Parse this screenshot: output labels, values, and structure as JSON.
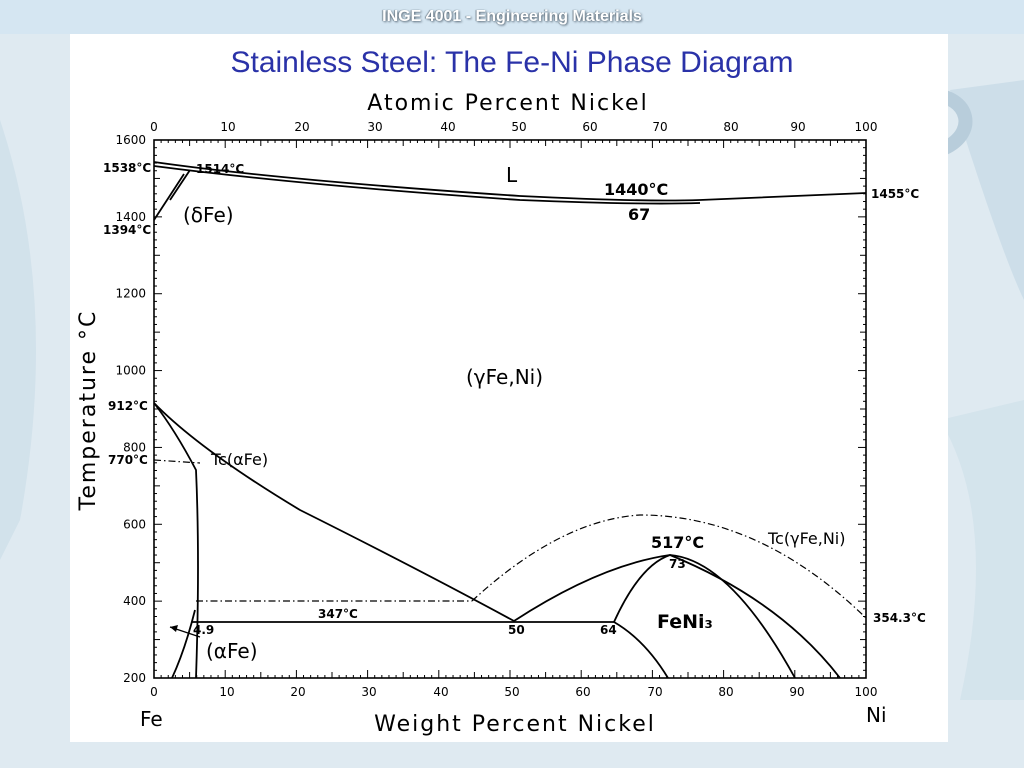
{
  "header": {
    "title": "INGE 4001 - Engineering Materials"
  },
  "slide": {
    "title": "Stainless Steel: The Fe-Ni Phase Diagram"
  },
  "diagram": {
    "top_axis_title": "Atomic Percent Nickel",
    "bottom_axis_title": "Weight Percent Nickel",
    "y_axis_title": "Temperature °C",
    "left_end_label": "Fe",
    "right_end_label": "Ni",
    "x_ticks": [
      "0",
      "10",
      "20",
      "30",
      "40",
      "50",
      "60",
      "70",
      "80",
      "90",
      "100"
    ],
    "y_ticks": [
      "1600",
      "1400",
      "1200",
      "1000",
      "800",
      "600",
      "400",
      "200"
    ],
    "labels": {
      "t1538": "1538°C",
      "t1514": "1514°C",
      "t1394": "1394°C",
      "t1455": "1455°C",
      "t1440": "1440°C",
      "c67": "67",
      "liquid": "L",
      "delta_fe": "(δFe)",
      "gamma_fe_ni": "(γFe,Ni)",
      "t912": "912°C",
      "t770": "770°C",
      "tc_alpha": "Tc(αFe)",
      "tc_gamma": "Tc(γFe,Ni)",
      "t517": "517°C",
      "c73": "73",
      "t347": "347°C",
      "c4_9": "4.9",
      "c50": "50",
      "c64": "64",
      "feni3": "FeNi₃",
      "alpha_fe": "(αFe)",
      "t354": "354.3°C"
    }
  }
}
